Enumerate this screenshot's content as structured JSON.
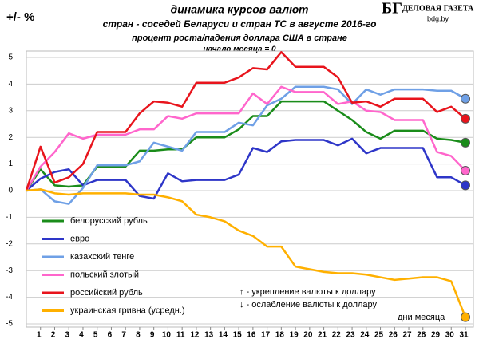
{
  "chart_data": {
    "type": "line",
    "title": "динамика курсов валют",
    "subtitle": "стран - соседей Беларуси и стран ТС в августе 2016-го",
    "subtitle2": "процент роста/падения доллара США в стране",
    "note": "начало месяца = 0",
    "ylabel": "+/- %",
    "xlabel": "дни месяца",
    "annotations": [
      "↑ - укрепление валюты к доллару",
      "↓ - ослабление валюты к доллару"
    ],
    "source": {
      "logo": "БГ",
      "name": "ДЕЛОВАЯ ГАЗЕТА",
      "site": "bdg.by"
    },
    "categories": [
      null,
      1,
      2,
      3,
      4,
      5,
      6,
      7,
      8,
      9,
      10,
      11,
      12,
      13,
      14,
      15,
      16,
      17,
      18,
      19,
      20,
      21,
      22,
      23,
      24,
      25,
      26,
      27,
      28,
      29,
      30,
      31
    ],
    "ylim": [
      -5,
      5
    ],
    "yticks": [
      -5,
      -4,
      -3,
      -2,
      -1,
      0,
      1,
      2,
      3,
      4,
      5
    ],
    "grid": true,
    "series": [
      {
        "name": "белорусский рубль",
        "color": "#1a8c1a",
        "values": [
          0,
          0.8,
          0.2,
          0.15,
          0.2,
          0.9,
          0.9,
          0.9,
          1.5,
          1.5,
          1.55,
          1.55,
          2.0,
          2.0,
          2.0,
          2.3,
          2.8,
          2.8,
          3.35,
          3.35,
          3.35,
          3.35,
          3.0,
          2.65,
          2.2,
          1.95,
          2.25,
          2.25,
          2.25,
          1.95,
          1.9,
          1.8
        ]
      },
      {
        "name": "евро",
        "color": "#2e36c8",
        "values": [
          0,
          0.45,
          0.7,
          0.8,
          0.2,
          0.4,
          0.4,
          0.4,
          -0.2,
          -0.3,
          0.65,
          0.35,
          0.4,
          0.4,
          0.4,
          0.6,
          1.6,
          1.45,
          1.85,
          1.9,
          1.9,
          1.9,
          1.7,
          1.95,
          1.4,
          1.6,
          1.6,
          1.6,
          1.6,
          0.5,
          0.5,
          0.2
        ]
      },
      {
        "name": "казахский тенге",
        "color": "#6fa0e6",
        "values": [
          0,
          0.05,
          -0.4,
          -0.5,
          0.1,
          0.95,
          0.95,
          0.95,
          1.1,
          1.8,
          1.65,
          1.5,
          2.2,
          2.2,
          2.2,
          2.55,
          2.45,
          3.2,
          3.45,
          3.9,
          3.9,
          3.9,
          3.8,
          3.25,
          3.8,
          3.6,
          3.8,
          3.8,
          3.8,
          3.75,
          3.75,
          3.45
        ]
      },
      {
        "name": "польский злотый",
        "color": "#ff66cc",
        "values": [
          0,
          0.9,
          1.45,
          2.15,
          1.95,
          2.1,
          2.1,
          2.1,
          2.3,
          2.3,
          2.8,
          2.7,
          2.9,
          2.9,
          2.9,
          2.9,
          3.65,
          3.25,
          3.9,
          3.7,
          3.7,
          3.7,
          3.25,
          3.35,
          3.0,
          2.95,
          2.65,
          2.65,
          2.65,
          1.45,
          1.3,
          0.75
        ]
      },
      {
        "name": "российский рубль",
        "color": "#e8141c",
        "values": [
          0,
          1.65,
          0.3,
          0.5,
          1.0,
          2.2,
          2.2,
          2.2,
          2.9,
          3.35,
          3.3,
          3.15,
          4.05,
          4.05,
          4.05,
          4.25,
          4.6,
          4.55,
          5.2,
          4.65,
          4.65,
          4.65,
          4.25,
          3.3,
          3.35,
          3.15,
          3.45,
          3.45,
          3.45,
          2.95,
          3.15,
          2.7
        ]
      },
      {
        "name": "украинская гривна (усредн.)",
        "color": "#ffb000",
        "values": [
          0,
          0.05,
          -0.1,
          -0.15,
          -0.1,
          -0.1,
          -0.1,
          -0.1,
          -0.15,
          -0.15,
          -0.25,
          -0.4,
          -0.9,
          -1.0,
          -1.15,
          -1.5,
          -1.7,
          -2.1,
          -2.1,
          -2.85,
          -2.95,
          -3.05,
          -3.1,
          -3.1,
          -3.15,
          -3.25,
          -3.35,
          -3.3,
          -3.25,
          -3.25,
          -3.4,
          -4.75
        ]
      }
    ]
  }
}
